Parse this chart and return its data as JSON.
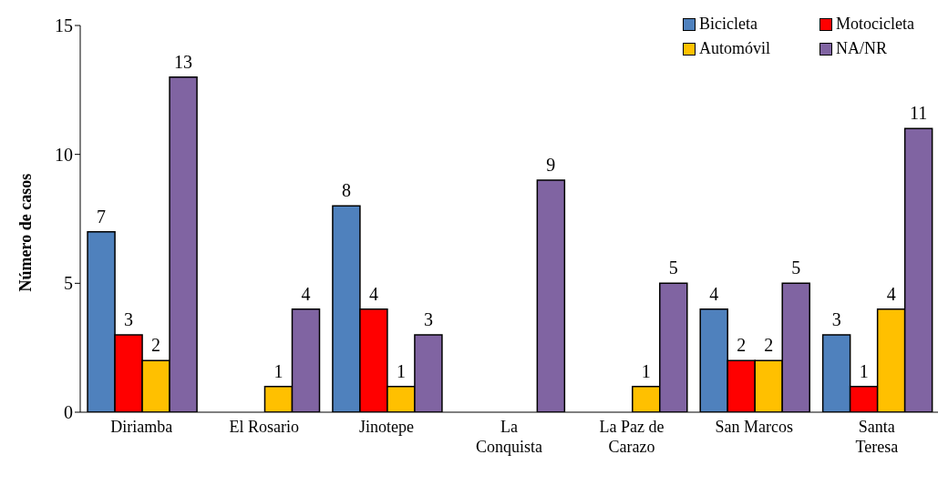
{
  "chart_data": {
    "type": "bar",
    "ylabel": "Número de casos",
    "categories": [
      "Diriamba",
      "El Rosario",
      "Jinotepe",
      "La Conquista",
      "La Paz de Carazo",
      "San Marcos",
      "Santa Teresa"
    ],
    "series": [
      {
        "name": "Bicicleta",
        "color": "#4f81bd",
        "values": [
          7,
          null,
          8,
          null,
          null,
          4,
          3
        ]
      },
      {
        "name": "Motocicleta",
        "color": "#ff0000",
        "values": [
          3,
          null,
          4,
          null,
          null,
          2,
          1
        ]
      },
      {
        "name": "Automóvil",
        "color": "#ffc000",
        "values": [
          2,
          1,
          1,
          null,
          1,
          2,
          4
        ]
      },
      {
        "name": "NA/NR",
        "color": "#8064a2",
        "values": [
          13,
          4,
          3,
          9,
          5,
          5,
          11
        ]
      }
    ],
    "ylim": [
      0,
      15
    ],
    "yticks": [
      0,
      5,
      10,
      15
    ],
    "grid": false,
    "legend": "top right",
    "data_labels": true
  }
}
